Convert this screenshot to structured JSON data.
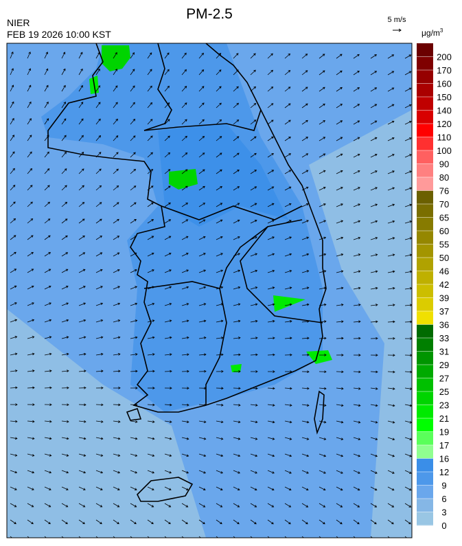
{
  "header": {
    "title": "PM-2.5",
    "agency": "NIER",
    "datetime": "FEB 19 2026 10:00 KST",
    "wind_scale": "5 m/s"
  },
  "colorbar": {
    "unit": "μg/m",
    "unit_sup": "3",
    "ticks": [
      200,
      170,
      160,
      150,
      140,
      120,
      110,
      100,
      90,
      80,
      76,
      70,
      65,
      60,
      55,
      50,
      46,
      42,
      39,
      37,
      36,
      33,
      31,
      29,
      27,
      25,
      23,
      21,
      19,
      17,
      16,
      12,
      9,
      6,
      3,
      0
    ],
    "colors": [
      "#6b0000",
      "#7f0000",
      "#960000",
      "#aa0000",
      "#c00000",
      "#d80000",
      "#ff0000",
      "#ff3030",
      "#ff6060",
      "#ff8080",
      "#ff9a9a",
      "#6b6000",
      "#7a6e00",
      "#877b00",
      "#958700",
      "#a39500",
      "#b0a200",
      "#bfb000",
      "#ccbe00",
      "#dbcc00",
      "#f0e000",
      "#006b00",
      "#007f00",
      "#009500",
      "#00aa00",
      "#00c000",
      "#00d400",
      "#00ea00",
      "#00ff00",
      "#5aff5a",
      "#90ff90",
      "#3a8ee8",
      "#4d98ea",
      "#6aa7ec",
      "#85b7e6",
      "#99c6e4"
    ]
  }
}
